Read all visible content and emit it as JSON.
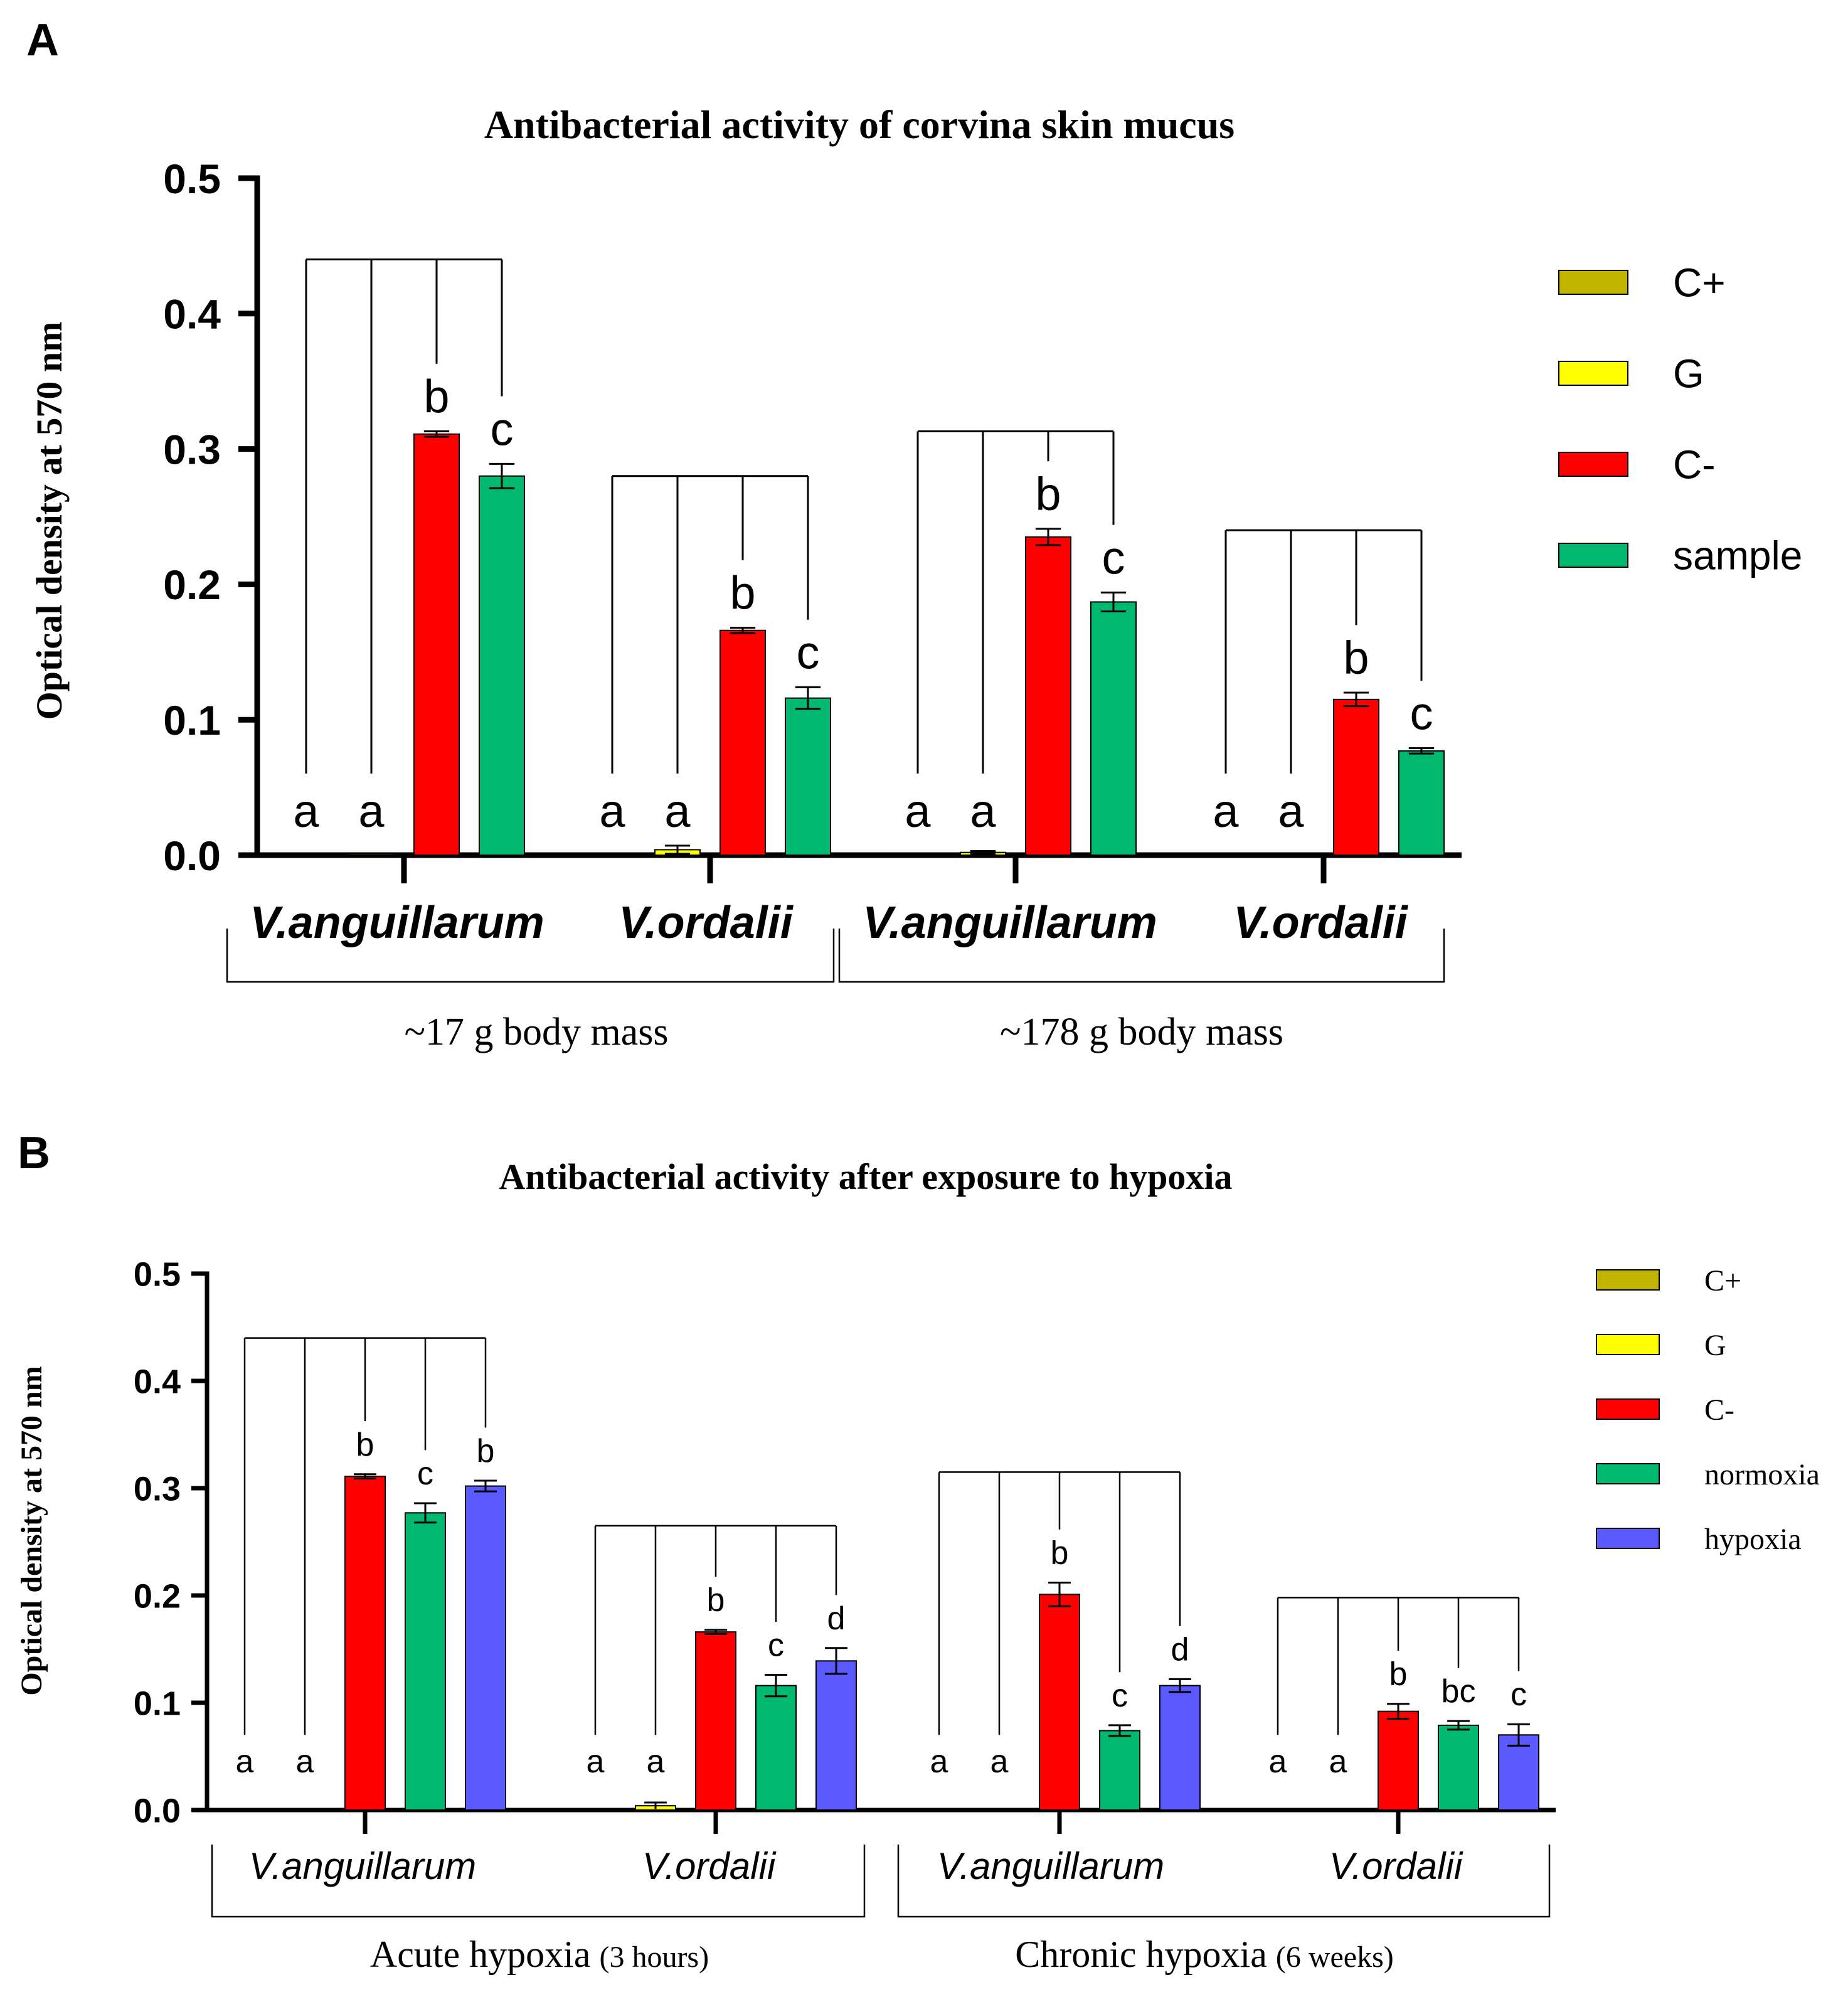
{
  "panel_labels": [
    "A",
    "B"
  ],
  "chart_data": [
    {
      "type": "bar",
      "title": "Antibacterial activity of corvina skin mucus",
      "ylabel": "Optical density at 570 nm",
      "ylim": [
        0,
        0.5
      ],
      "yticks": [
        0.0,
        0.1,
        0.2,
        0.3,
        0.4,
        0.5
      ],
      "ytick_labels": [
        "0.0",
        "0.1",
        "0.2",
        "0.3",
        "0.4",
        "0.5"
      ],
      "groups": [
        "V.anguillarum",
        "V.ordalii",
        "V.anguillarum",
        "V.ordalii"
      ],
      "supergroups": [
        {
          "label": "~17 g body mass",
          "extra": "",
          "groups": [
            0,
            1
          ]
        },
        {
          "label": "~178 g body mass",
          "extra": "",
          "groups": [
            2,
            3
          ]
        }
      ],
      "series": [
        {
          "name": "C+",
          "color": "#c0b400",
          "values": [
            0,
            0,
            0,
            0
          ],
          "errors": [
            0,
            0,
            0,
            0
          ]
        },
        {
          "name": "G",
          "color": "#ffff00",
          "values": [
            0.001,
            0.004,
            0.002,
            0.0
          ],
          "errors": [
            0,
            0.003,
            0.001,
            0
          ]
        },
        {
          "name": "C-",
          "color": "#ff0000",
          "values": [
            0.311,
            0.166,
            0.235,
            0.115
          ],
          "errors": [
            0.002,
            0.002,
            0.006,
            0.005
          ]
        },
        {
          "name": "sample",
          "color": "#00b96f",
          "values": [
            0.28,
            0.116,
            0.187,
            0.077
          ],
          "errors": [
            0.009,
            0.008,
            0.007,
            0.002
          ]
        }
      ],
      "letters": [
        [
          "a",
          "a",
          "b",
          "c"
        ],
        [
          "a",
          "a",
          "b",
          "c"
        ],
        [
          "a",
          "a",
          "b",
          "c"
        ],
        [
          "a",
          "a",
          "b",
          "c"
        ]
      ],
      "bracket_levels": [
        0.44,
        0.28,
        0.313,
        0.24
      ]
    },
    {
      "type": "bar",
      "title": "Antibacterial activity after exposure to hypoxia",
      "ylabel": "Optical density at 570 nm",
      "ylim": [
        0,
        0.5
      ],
      "yticks": [
        0.0,
        0.1,
        0.2,
        0.3,
        0.4,
        0.5
      ],
      "ytick_labels": [
        "0.0",
        "0.1",
        "0.2",
        "0.3",
        "0.4",
        "0.5"
      ],
      "groups": [
        "V.anguillarum",
        "V.ordalii",
        "V.anguillarum",
        "V.ordalii"
      ],
      "supergroups": [
        {
          "label": "Acute hypoxia",
          "extra": "(3 hours)",
          "groups": [
            0,
            1
          ]
        },
        {
          "label": "Chronic hypoxia",
          "extra": "(6 weeks)",
          "groups": [
            2,
            3
          ]
        }
      ],
      "series": [
        {
          "name": "C+",
          "color": "#c0b400",
          "values": [
            0,
            0,
            0,
            0
          ],
          "errors": [
            0,
            0,
            0,
            0
          ]
        },
        {
          "name": "G",
          "color": "#ffff00",
          "values": [
            0.001,
            0.004,
            0.0,
            0.0
          ],
          "errors": [
            0,
            0.003,
            0,
            0
          ]
        },
        {
          "name": "C-",
          "color": "#ff0000",
          "values": [
            0.311,
            0.166,
            0.201,
            0.092
          ],
          "errors": [
            0.002,
            0.002,
            0.011,
            0.007
          ]
        },
        {
          "name": "normoxia",
          "color": "#00b96f",
          "values": [
            0.277,
            0.116,
            0.074,
            0.079
          ],
          "errors": [
            0.009,
            0.01,
            0.005,
            0.004
          ]
        },
        {
          "name": "hypoxia",
          "color": "#5a5aff",
          "values": [
            0.302,
            0.139,
            0.116,
            0.07
          ],
          "errors": [
            0.005,
            0.012,
            0.006,
            0.01
          ]
        }
      ],
      "letters": [
        [
          "a",
          "a",
          "b",
          "c",
          "b"
        ],
        [
          "a",
          "a",
          "b",
          "c",
          "d"
        ],
        [
          "a",
          "a",
          "b",
          "c",
          "d"
        ],
        [
          "a",
          "a",
          "b",
          "bc",
          "c"
        ]
      ],
      "bracket_levels": [
        0.44,
        0.265,
        0.315,
        0.198
      ]
    }
  ]
}
